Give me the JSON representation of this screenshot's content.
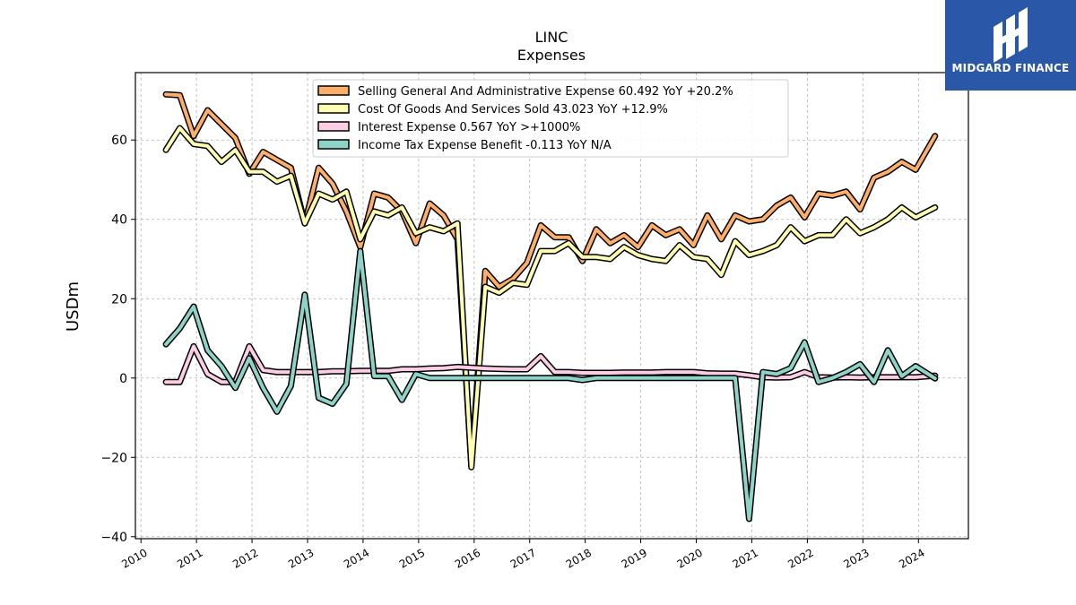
{
  "brand": {
    "name": "MIDGARD FINANCE",
    "bg_color": "#2b57a8"
  },
  "chart_data": {
    "type": "line",
    "title": "LINC",
    "subtitle": "Expenses",
    "ylabel": "USDm",
    "xlabel": "",
    "xlim": [
      2009.9,
      2024.9
    ],
    "ylim": [
      -40.5,
      77
    ],
    "x_ticks": [
      2010,
      2011,
      2012,
      2013,
      2014,
      2015,
      2016,
      2017,
      2018,
      2019,
      2020,
      2021,
      2022,
      2023,
      2024
    ],
    "y_ticks": [
      -40,
      -20,
      0,
      20,
      40,
      60
    ],
    "grid": true,
    "legend_position": "top-center",
    "series": [
      {
        "name": "Selling General And Administrative Expense  60.492 YoY +20.2%",
        "color": "#fdae6b",
        "points": [
          [
            2010.45,
            71.5
          ],
          [
            2010.7,
            71.3
          ],
          [
            2010.95,
            61
          ],
          [
            2011.2,
            67.5
          ],
          [
            2011.45,
            64
          ],
          [
            2011.7,
            60.5
          ],
          [
            2011.95,
            51.5
          ],
          [
            2012.2,
            57
          ],
          [
            2012.45,
            55
          ],
          [
            2012.7,
            53
          ],
          [
            2012.95,
            39
          ],
          [
            2013.2,
            53
          ],
          [
            2013.45,
            49
          ],
          [
            2013.7,
            42
          ],
          [
            2013.95,
            33
          ],
          [
            2014.2,
            46.5
          ],
          [
            2014.45,
            45.5
          ],
          [
            2014.7,
            42
          ],
          [
            2014.95,
            34
          ],
          [
            2015.2,
            44
          ],
          [
            2015.45,
            41
          ],
          [
            2015.7,
            35
          ],
          [
            2015.95,
            -22
          ],
          [
            2016.2,
            27
          ],
          [
            2016.45,
            23
          ],
          [
            2016.7,
            25
          ],
          [
            2016.95,
            29
          ],
          [
            2017.2,
            38.5
          ],
          [
            2017.45,
            35.5
          ],
          [
            2017.7,
            35.5
          ],
          [
            2017.95,
            29.5
          ],
          [
            2018.2,
            37.5
          ],
          [
            2018.45,
            34
          ],
          [
            2018.7,
            36
          ],
          [
            2018.95,
            33
          ],
          [
            2019.2,
            38.5
          ],
          [
            2019.45,
            36
          ],
          [
            2019.7,
            37.5
          ],
          [
            2019.95,
            33.5
          ],
          [
            2020.2,
            41
          ],
          [
            2020.45,
            35
          ],
          [
            2020.7,
            41
          ],
          [
            2020.95,
            39.5
          ],
          [
            2021.2,
            40
          ],
          [
            2021.45,
            43.5
          ],
          [
            2021.7,
            45.5
          ],
          [
            2021.95,
            40.5
          ],
          [
            2022.2,
            46.5
          ],
          [
            2022.45,
            46
          ],
          [
            2022.7,
            47
          ],
          [
            2022.95,
            42.5
          ],
          [
            2023.2,
            50.5
          ],
          [
            2023.45,
            52
          ],
          [
            2023.7,
            54.5
          ],
          [
            2023.95,
            52.5
          ],
          [
            2024.3,
            61
          ]
        ]
      },
      {
        "name": "Cost Of Goods And Services Sold  43.023 YoY +12.9%",
        "color": "#ffffb3",
        "points": [
          [
            2010.45,
            57.5
          ],
          [
            2010.7,
            63
          ],
          [
            2010.95,
            59
          ],
          [
            2011.2,
            58.5
          ],
          [
            2011.45,
            54.5
          ],
          [
            2011.7,
            57.5
          ],
          [
            2011.95,
            52
          ],
          [
            2012.2,
            52
          ],
          [
            2012.45,
            49.5
          ],
          [
            2012.7,
            51
          ],
          [
            2012.95,
            39
          ],
          [
            2013.2,
            46.5
          ],
          [
            2013.45,
            45
          ],
          [
            2013.7,
            47
          ],
          [
            2013.95,
            35
          ],
          [
            2014.2,
            42
          ],
          [
            2014.45,
            41
          ],
          [
            2014.7,
            43
          ],
          [
            2014.95,
            36.5
          ],
          [
            2015.2,
            38
          ],
          [
            2015.45,
            37
          ],
          [
            2015.7,
            39
          ],
          [
            2015.95,
            -22.5
          ],
          [
            2016.2,
            23
          ],
          [
            2016.45,
            21.5
          ],
          [
            2016.7,
            24
          ],
          [
            2016.95,
            23.5
          ],
          [
            2017.2,
            32
          ],
          [
            2017.45,
            32
          ],
          [
            2017.7,
            34
          ],
          [
            2017.95,
            30.5
          ],
          [
            2018.2,
            30.5
          ],
          [
            2018.45,
            30
          ],
          [
            2018.7,
            33
          ],
          [
            2018.95,
            31
          ],
          [
            2019.2,
            30
          ],
          [
            2019.45,
            29.5
          ],
          [
            2019.7,
            33.5
          ],
          [
            2019.95,
            30.5
          ],
          [
            2020.2,
            30
          ],
          [
            2020.45,
            26
          ],
          [
            2020.7,
            34.5
          ],
          [
            2020.95,
            31
          ],
          [
            2021.2,
            32
          ],
          [
            2021.45,
            33.5
          ],
          [
            2021.7,
            38
          ],
          [
            2021.95,
            34.5
          ],
          [
            2022.2,
            36
          ],
          [
            2022.45,
            36
          ],
          [
            2022.7,
            40
          ],
          [
            2022.95,
            36.5
          ],
          [
            2023.2,
            38
          ],
          [
            2023.45,
            40
          ],
          [
            2023.7,
            43
          ],
          [
            2023.95,
            40.5
          ],
          [
            2024.3,
            43
          ]
        ]
      },
      {
        "name": "Interest Expense  0.567 YoY >+1000%",
        "color": "#fccde5",
        "points": [
          [
            2010.45,
            -1
          ],
          [
            2010.7,
            -1
          ],
          [
            2010.95,
            8
          ],
          [
            2011.2,
            1
          ],
          [
            2011.45,
            -1
          ],
          [
            2011.7,
            -1
          ],
          [
            2011.95,
            8
          ],
          [
            2012.2,
            2
          ],
          [
            2012.45,
            1.5
          ],
          [
            2012.7,
            1.5
          ],
          [
            2012.95,
            1.5
          ],
          [
            2013.2,
            1.5
          ],
          [
            2013.45,
            1.7
          ],
          [
            2013.7,
            1.7
          ],
          [
            2013.95,
            1.8
          ],
          [
            2014.2,
            1.8
          ],
          [
            2014.45,
            1.8
          ],
          [
            2014.7,
            2.2
          ],
          [
            2014.95,
            2.2
          ],
          [
            2015.2,
            2.4
          ],
          [
            2015.45,
            2.5
          ],
          [
            2015.7,
            2.8
          ],
          [
            2015.95,
            2.6
          ],
          [
            2016.2,
            2.4
          ],
          [
            2016.45,
            2.3
          ],
          [
            2016.7,
            2.2
          ],
          [
            2016.95,
            2.2
          ],
          [
            2017.2,
            5.5
          ],
          [
            2017.45,
            1.5
          ],
          [
            2017.7,
            1.5
          ],
          [
            2017.95,
            1.3
          ],
          [
            2018.2,
            1.3
          ],
          [
            2018.45,
            1.3
          ],
          [
            2018.7,
            1.4
          ],
          [
            2018.95,
            1.4
          ],
          [
            2019.2,
            1.4
          ],
          [
            2019.45,
            1.5
          ],
          [
            2019.7,
            1.5
          ],
          [
            2019.95,
            1.5
          ],
          [
            2020.2,
            1.2
          ],
          [
            2020.45,
            1.1
          ],
          [
            2020.7,
            1.1
          ],
          [
            2020.95,
            0.7
          ],
          [
            2021.2,
            0.2
          ],
          [
            2021.45,
            0.1
          ],
          [
            2021.7,
            0.2
          ],
          [
            2021.95,
            1.5
          ],
          [
            2022.2,
            0.2
          ],
          [
            2022.45,
            0.1
          ],
          [
            2022.7,
            0.2
          ],
          [
            2022.95,
            0.1
          ],
          [
            2023.2,
            0.2
          ],
          [
            2023.45,
            0.2
          ],
          [
            2023.7,
            0.2
          ],
          [
            2023.95,
            0.2
          ],
          [
            2024.3,
            0.6
          ]
        ]
      },
      {
        "name": "Income Tax Expense Benefit  -0.113 YoY N/A",
        "color": "#8dd3c7",
        "points": [
          [
            2010.45,
            8.5
          ],
          [
            2010.7,
            12.5
          ],
          [
            2010.95,
            18
          ],
          [
            2011.2,
            7
          ],
          [
            2011.45,
            3
          ],
          [
            2011.7,
            -2.5
          ],
          [
            2011.95,
            5
          ],
          [
            2012.2,
            -2.5
          ],
          [
            2012.45,
            -8.5
          ],
          [
            2012.7,
            -2
          ],
          [
            2012.95,
            21
          ],
          [
            2013.2,
            -5
          ],
          [
            2013.45,
            -6.5
          ],
          [
            2013.7,
            -1.5
          ],
          [
            2013.95,
            32
          ],
          [
            2014.2,
            0.5
          ],
          [
            2014.45,
            0.5
          ],
          [
            2014.7,
            -5.5
          ],
          [
            2014.95,
            1
          ],
          [
            2015.2,
            0
          ],
          [
            2015.45,
            0
          ],
          [
            2015.7,
            0
          ],
          [
            2015.95,
            0
          ],
          [
            2016.2,
            0
          ],
          [
            2016.45,
            0
          ],
          [
            2016.7,
            0
          ],
          [
            2016.95,
            0
          ],
          [
            2017.2,
            0
          ],
          [
            2017.45,
            0
          ],
          [
            2017.7,
            0
          ],
          [
            2017.95,
            -0.5
          ],
          [
            2018.2,
            0
          ],
          [
            2018.45,
            0
          ],
          [
            2018.7,
            0
          ],
          [
            2018.95,
            0
          ],
          [
            2019.2,
            0
          ],
          [
            2019.45,
            0
          ],
          [
            2019.7,
            0
          ],
          [
            2019.95,
            0
          ],
          [
            2020.2,
            0
          ],
          [
            2020.45,
            0
          ],
          [
            2020.7,
            0
          ],
          [
            2020.95,
            -35.5
          ],
          [
            2021.2,
            1.5
          ],
          [
            2021.45,
            1
          ],
          [
            2021.7,
            2.5
          ],
          [
            2021.95,
            9
          ],
          [
            2022.2,
            -1
          ],
          [
            2022.45,
            0
          ],
          [
            2022.7,
            1.5
          ],
          [
            2022.95,
            3.5
          ],
          [
            2023.2,
            -1
          ],
          [
            2023.45,
            7
          ],
          [
            2023.7,
            0.5
          ],
          [
            2023.95,
            3
          ],
          [
            2024.3,
            -0.1
          ]
        ]
      }
    ]
  }
}
